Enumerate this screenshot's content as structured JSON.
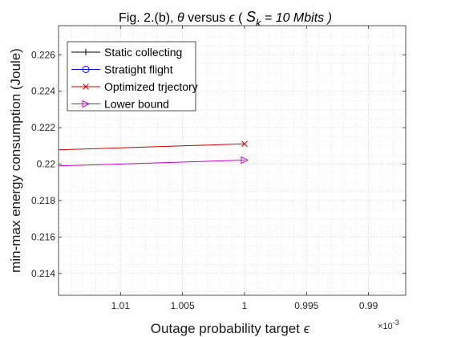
{
  "figure": {
    "title_prefix": "Fig. 2.(b), ",
    "title_theta": "θ",
    "title_mid": " versus ",
    "title_epsilon": "ϵ",
    "title_paren_open": " (  ",
    "title_S": "S",
    "title_S_sub": "k",
    "title_rest": " = 10 Mbits )",
    "ylabel": "min-max energy consumption (Joule)",
    "xlabel_text": "Outage probability target ",
    "xlabel_symbol": "ϵ",
    "x_exponent_base": "×10",
    "x_exponent_power": "-3"
  },
  "chart_data": {
    "type": "line",
    "x_reversed": true,
    "xlim": [
      0.001015,
      0.000987
    ],
    "ylim": [
      0.2128,
      0.2276
    ],
    "x_tick_values": [
      0.00101,
      0.001005,
      0.001,
      0.000995,
      0.00099
    ],
    "x_tick_labels": [
      "1.01",
      "1.005",
      "1",
      "0.995",
      "0.99"
    ],
    "y_tick_values": [
      0.214,
      0.216,
      0.218,
      0.22,
      0.222,
      0.224,
      0.226
    ],
    "y_tick_labels": [
      "0.214",
      "0.216",
      "0.218",
      "0.22",
      "0.222",
      "0.224",
      "0.226"
    ],
    "grid": "minor-dotted",
    "legend_position": "top-left",
    "series": [
      {
        "name": "Static collecting",
        "color": "#000000",
        "marker": "plus",
        "x": [],
        "y": []
      },
      {
        "name": "Stratight flight",
        "color": "#0000ff",
        "marker": "circle",
        "x": [],
        "y": []
      },
      {
        "name": "Optimized trjectory",
        "color": "#cc0000",
        "marker": "x",
        "x": [
          0.001015,
          0.001
        ],
        "y": [
          0.22078,
          0.22111
        ]
      },
      {
        "name": "Lower bound",
        "color": "#cc00cc",
        "marker": "triangle-right",
        "x": [
          0.001015,
          0.001
        ],
        "y": [
          0.2199,
          0.22022
        ]
      }
    ]
  }
}
